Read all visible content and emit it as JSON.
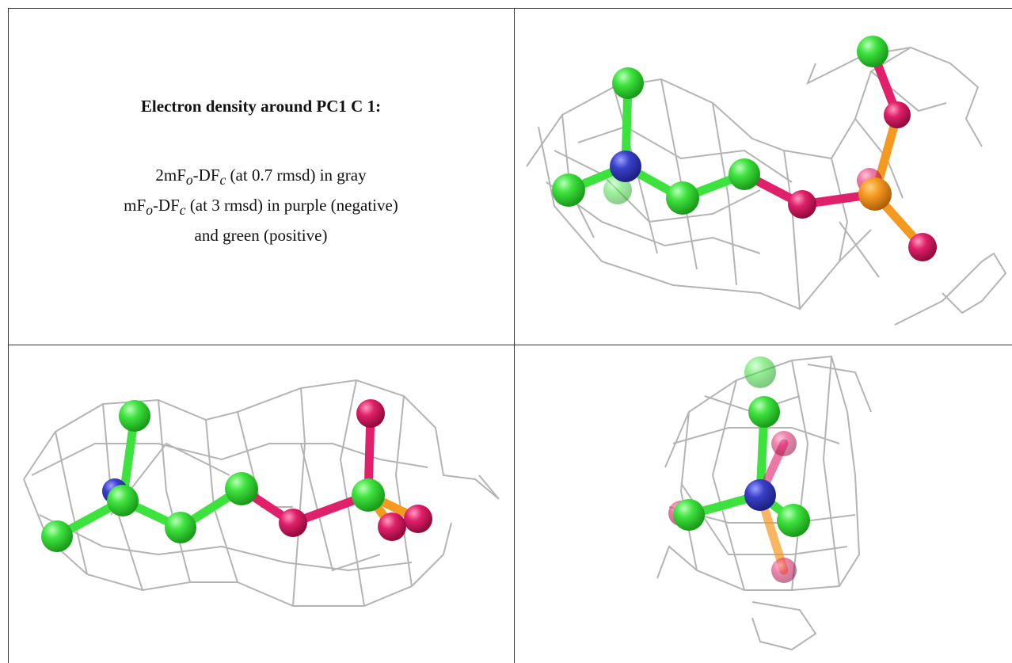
{
  "header": {
    "title": "Electron density around PC1 C 1:"
  },
  "legend": {
    "lines": [
      [
        "2mF",
        "o",
        "-DF",
        "c",
        " (at 0.7 rmsd) in gray"
      ],
      [
        "mF",
        "o",
        "-DF",
        "c",
        " (at 3 rmsd) in purple (negative)"
      ],
      [
        "and green (positive)"
      ]
    ]
  }
}
